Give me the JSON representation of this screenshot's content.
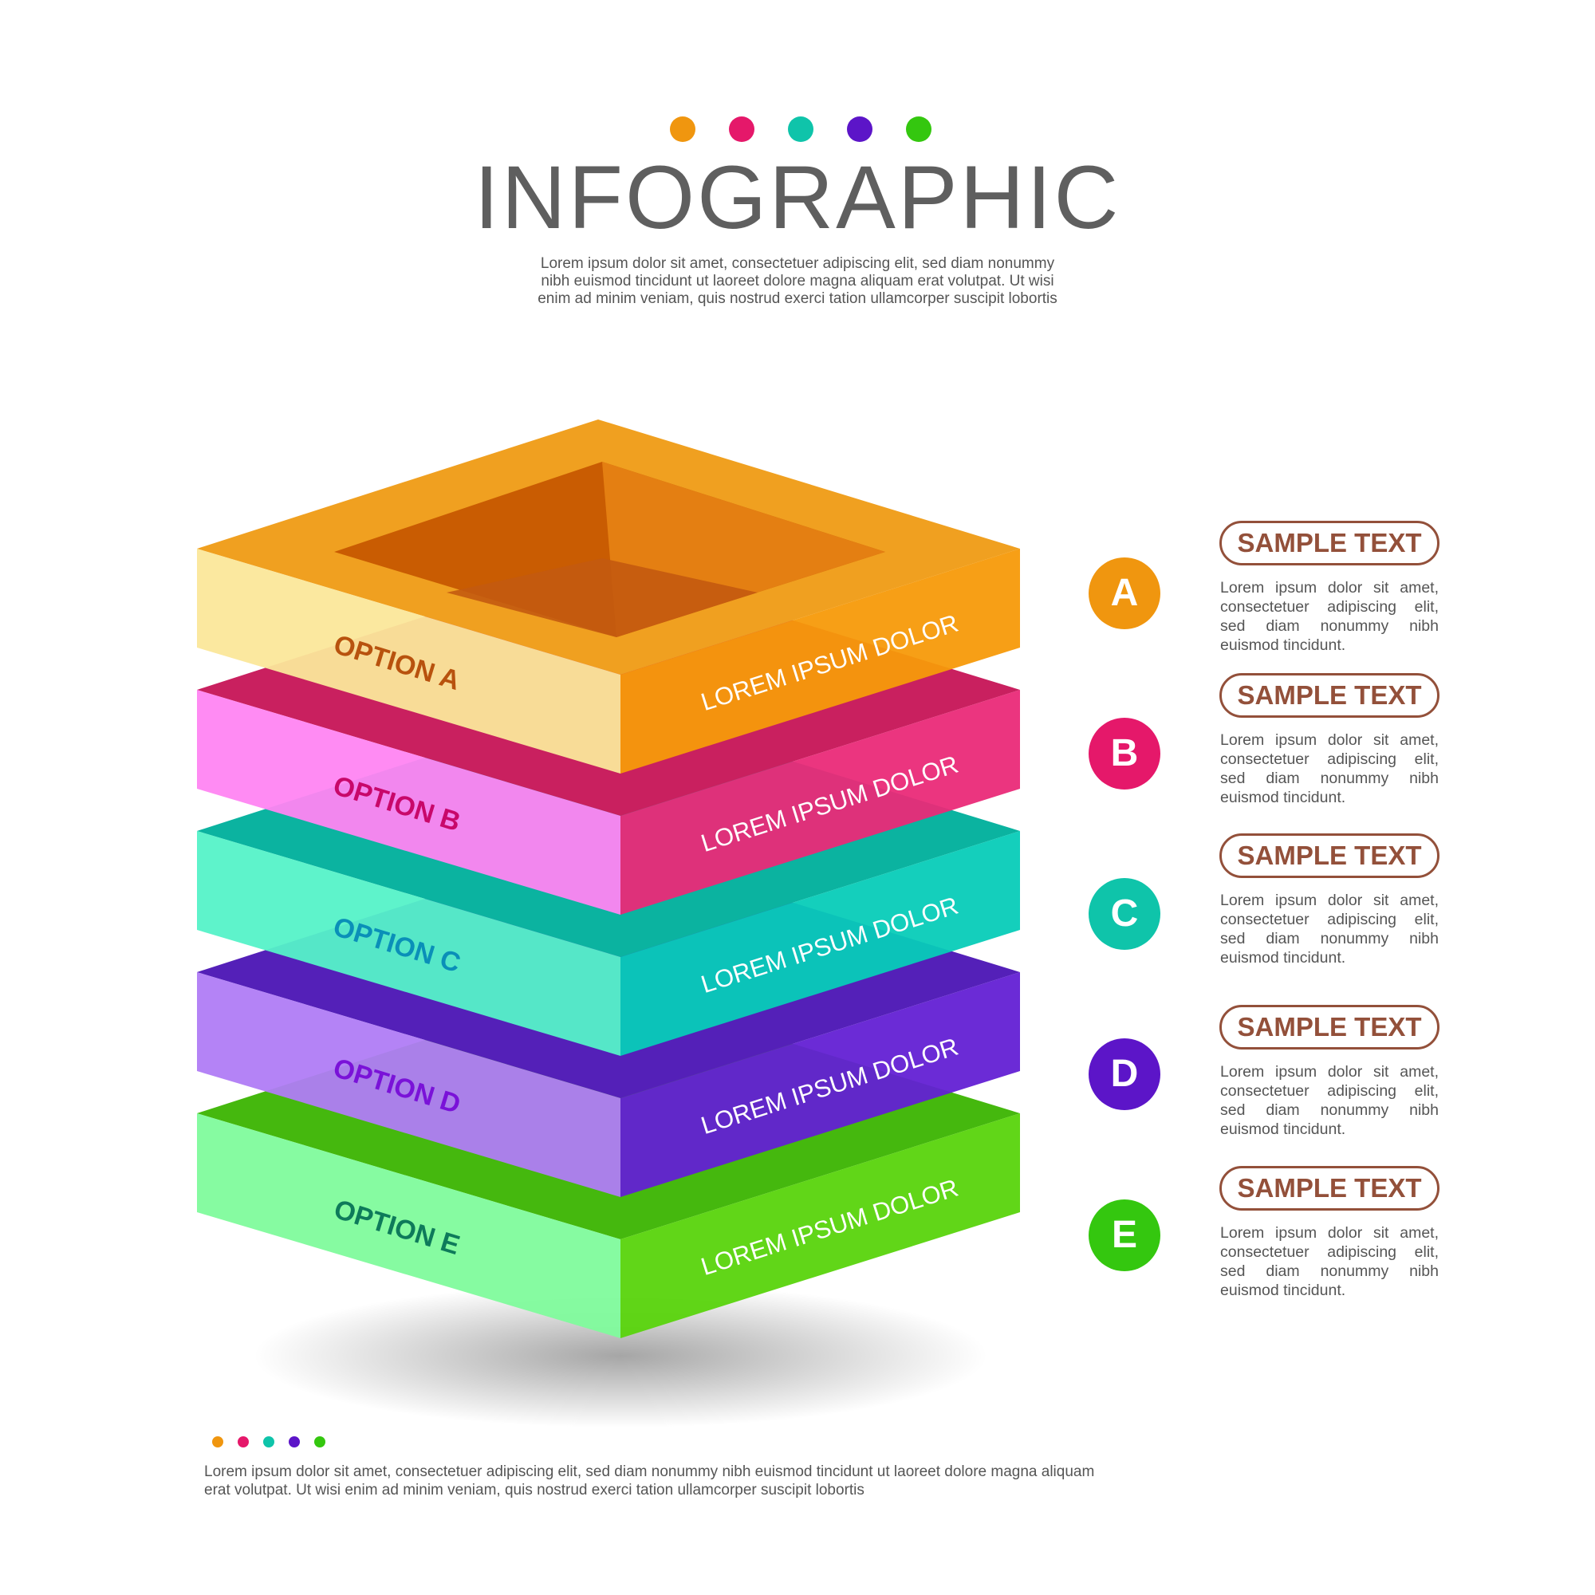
{
  "header": {
    "title": "INFOGRAPHIC",
    "subtitle": "Lorem ipsum dolor sit amet, consectetuer adipiscing elit, sed diam nonummy nibh euismod tincidunt ut laoreet dolore magna aliquam erat volutpat. Ut wisi enim ad minim veniam, quis nostrud exerci tation ullamcorper suscipit lobortis"
  },
  "palette": [
    "#f0960f",
    "#e5186a",
    "#0fc4aa",
    "#5c15c8",
    "#34c70f"
  ],
  "layers": [
    {
      "option": "OPTION A",
      "caption": "LOREM IPSUM DOLOR",
      "top": "#f0a020",
      "left": "#fbe79a",
      "right": "#f79a0a",
      "label": "#b8520e"
    },
    {
      "option": "OPTION B",
      "caption": "LOREM IPSUM DOLOR",
      "top": "#c9205f",
      "left": "#ff85f2",
      "right": "#ea2a78",
      "label": "#c8086a"
    },
    {
      "option": "OPTION C",
      "caption": "LOREM IPSUM DOLOR",
      "top": "#0bb3a0",
      "left": "#55f2c8",
      "right": "#07ccb8",
      "label": "#0a8fb8"
    },
    {
      "option": "OPTION D",
      "caption": "LOREM IPSUM DOLOR",
      "top": "#5420b8",
      "left": "#b07cf6",
      "right": "#6320d4",
      "label": "#7a12d8"
    },
    {
      "option": "OPTION E",
      "caption": "LOREM IPSUM DOLOR",
      "top": "#45b80e",
      "left": "#7ffb9c",
      "right": "#58d40c",
      "label": "#0e7a5a"
    }
  ],
  "items": [
    {
      "letter": "A",
      "heading": "SAMPLE TEXT",
      "text": "Lorem ipsum dolor sit amet, consectetuer adipiscing elit, sed diam nonummy nibh euismod tincidunt."
    },
    {
      "letter": "B",
      "heading": "SAMPLE TEXT",
      "text": "Lorem ipsum dolor sit amet, consectetuer adipiscing elit, sed diam nonummy nibh euismod tincidunt."
    },
    {
      "letter": "C",
      "heading": "SAMPLE TEXT",
      "text": "Lorem ipsum dolor sit amet, consectetuer adipiscing elit, sed diam nonummy nibh euismod tincidunt."
    },
    {
      "letter": "D",
      "heading": "SAMPLE TEXT",
      "text": "Lorem ipsum dolor sit amet, consectetuer adipiscing elit, sed diam nonummy nibh euismod tincidunt."
    },
    {
      "letter": "E",
      "heading": "SAMPLE TEXT",
      "text": "Lorem ipsum dolor sit amet, consectetuer adipiscing elit, sed diam nonummy nibh euismod tincidunt."
    }
  ],
  "footer": {
    "text": "Lorem ipsum dolor sit amet, consectetuer adipiscing elit, sed diam nonummy nibh euismod tincidunt ut laoreet dolore magna aliquam erat volutpat. Ut wisi enim ad minim veniam, quis nostrud exerci tation ullamcorper suscipit lobortis"
  }
}
